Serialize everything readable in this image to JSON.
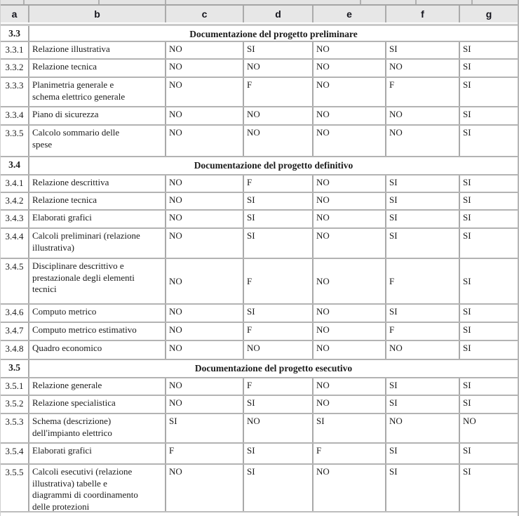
{
  "colors": {
    "page_bg": "#ffffff",
    "header_bg": "#e7e7e7",
    "border_gray": "#a9a9a9",
    "text": "#1b1b1b"
  },
  "table": {
    "columns": [
      "a",
      "b",
      "c",
      "d",
      "e",
      "f",
      "g"
    ],
    "sections": [
      {
        "id": "3.3",
        "title": "Documentazione del progetto preliminare",
        "rows": [
          {
            "id": "3.3.1",
            "label": "Relazione illustrativa",
            "values": [
              "NO",
              "SI",
              "NO",
              "SI",
              "SI"
            ]
          },
          {
            "id": "3.3.2",
            "label": "Relazione tecnica",
            "values": [
              "NO",
              "NO",
              "NO",
              "NO",
              "SI"
            ]
          },
          {
            "id": "3.3.3",
            "label": "Planimetria generale e\nschema elettrico generale",
            "values": [
              "NO",
              "F",
              "NO",
              "F",
              "SI"
            ]
          },
          {
            "id": "3.3.4",
            "label": "Piano di sicurezza",
            "values": [
              "NO",
              "NO",
              "NO",
              "NO",
              "SI"
            ]
          },
          {
            "id": "3.3.5",
            "label": "Calcolo sommario delle\nspese",
            "values": [
              "NO",
              "NO",
              "NO",
              "NO",
              "SI"
            ]
          }
        ]
      },
      {
        "id": "3.4",
        "title": "Documentazione del progetto definitivo",
        "rows": [
          {
            "id": "3.4.1",
            "label": "Relazione descrittiva",
            "values": [
              "NO",
              "F",
              "NO",
              "SI",
              "SI"
            ]
          },
          {
            "id": "3.4.2",
            "label": "Relazione tecnica",
            "values": [
              "NO",
              "SI",
              "NO",
              "SI",
              "SI"
            ]
          },
          {
            "id": "3.4.3",
            "label": "Elaborati grafici",
            "values": [
              "NO",
              "SI",
              "NO",
              "SI",
              "SI"
            ]
          },
          {
            "id": "3.4.4",
            "label": "Calcoli preliminari (relazione\nillustrativa)",
            "values": [
              "NO",
              "SI",
              "NO",
              "SI",
              "SI"
            ]
          },
          {
            "id": "3.4.5",
            "label": "Disciplinare descrittivo e\nprestazionale degli elementi\ntecnici",
            "values": [
              "NO",
              "F",
              "NO",
              "F",
              "SI"
            ]
          },
          {
            "id": "3.4.6",
            "label": "Computo metrico",
            "values": [
              "NO",
              "SI",
              "NO",
              "SI",
              "SI"
            ]
          },
          {
            "id": "3.4.7",
            "label": "Computo metrico estimativo",
            "values": [
              "NO",
              "F",
              "NO",
              "F",
              "SI"
            ]
          },
          {
            "id": "3.4.8",
            "label": "Quadro economico",
            "values": [
              "NO",
              "NO",
              "NO",
              "NO",
              "SI"
            ]
          }
        ]
      },
      {
        "id": "3.5",
        "title": "Documentazione del progetto esecutivo",
        "rows": [
          {
            "id": "3.5.1",
            "label": "Relazione generale",
            "values": [
              "NO",
              "F",
              "NO",
              "SI",
              "SI"
            ]
          },
          {
            "id": "3.5.2",
            "label": "Relazione specialistica",
            "values": [
              "NO",
              "SI",
              "NO",
              "SI",
              "SI"
            ]
          },
          {
            "id": "3.5.3",
            "label": "Schema (descrizione)\ndell'impianto elettrico",
            "values": [
              "SI",
              "NO",
              "SI",
              "NO",
              "NO"
            ]
          },
          {
            "id": "3.5.4",
            "label": "Elaborati grafici",
            "values": [
              "F",
              "SI",
              "F",
              "SI",
              "SI"
            ]
          },
          {
            "id": "3.5.5",
            "label": "Calcoli esecutivi (relazione\nillustrativa) tabelle e\ndiagrammi di coordinamento\ndelle protezioni",
            "values": [
              "NO",
              "SI",
              "NO",
              "SI",
              "SI"
            ]
          }
        ]
      }
    ]
  }
}
